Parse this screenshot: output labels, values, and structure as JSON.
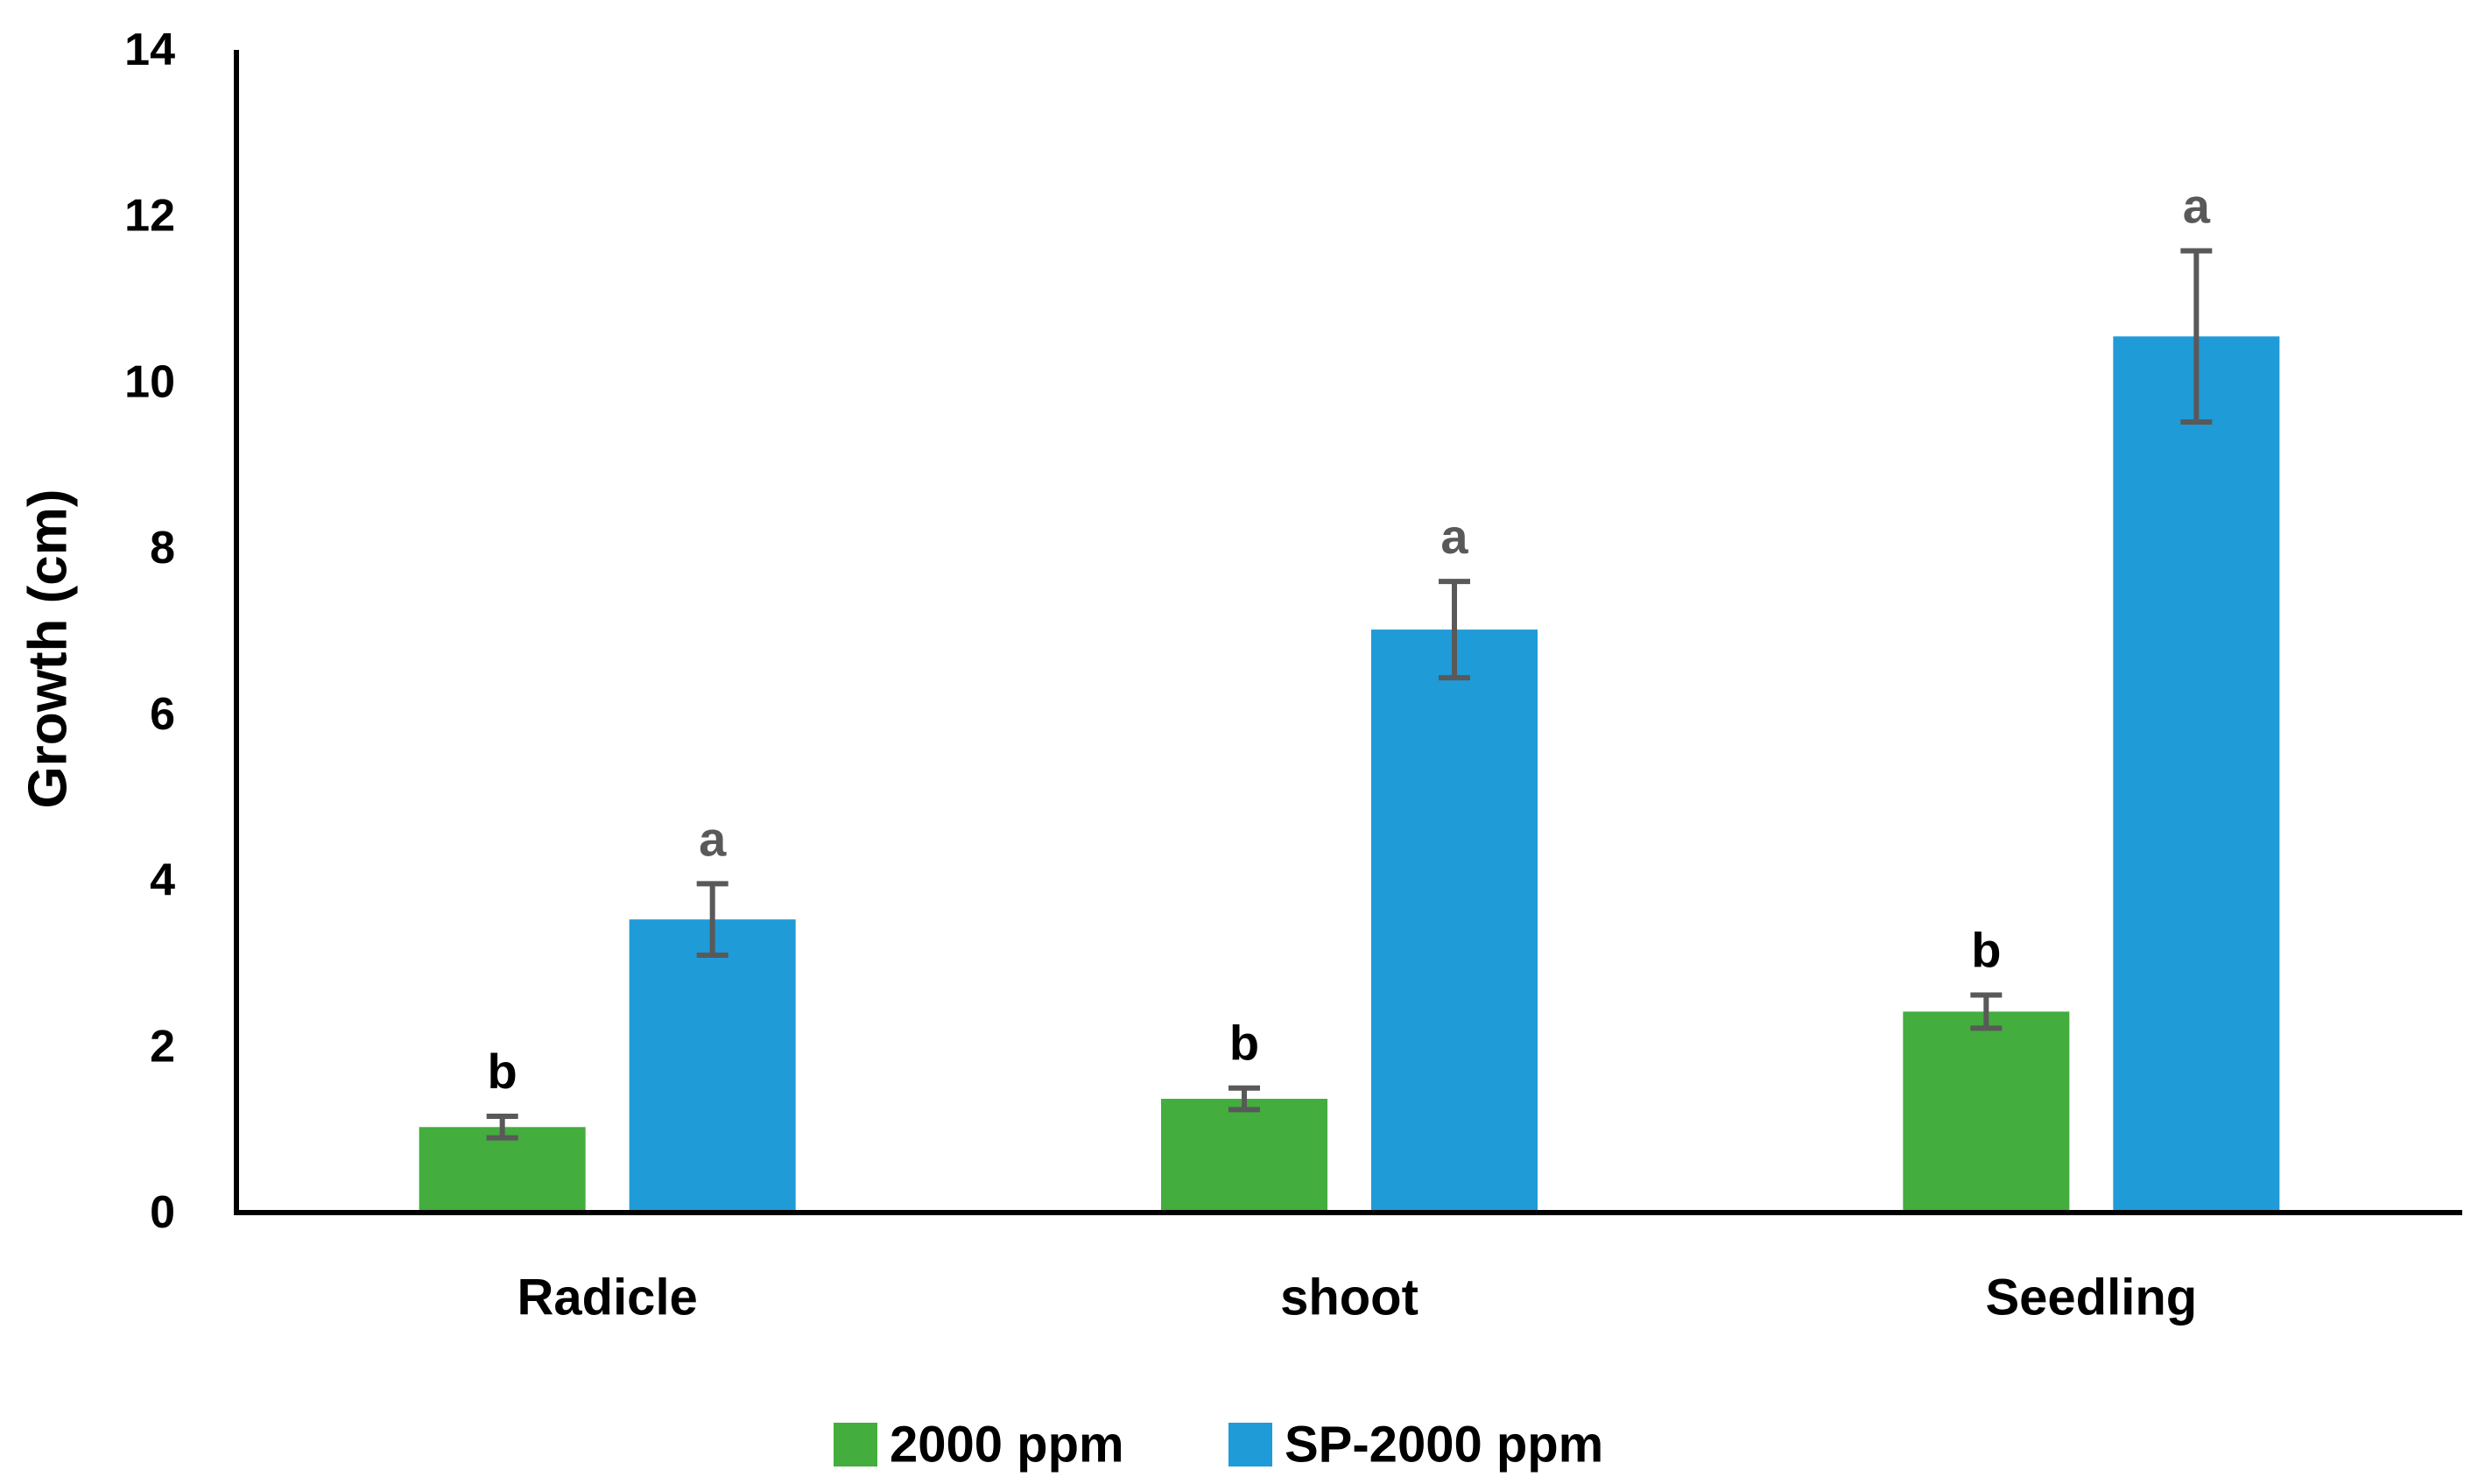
{
  "chart_data": {
    "type": "bar",
    "title": "",
    "xlabel": "",
    "ylabel": "Growth (cm)",
    "ylim": [
      0,
      14
    ],
    "yticks": [
      "0",
      "2",
      "4",
      "6",
      "8",
      "10",
      "12",
      "14"
    ],
    "grid": false,
    "legend_position": "bottom",
    "categories": [
      "Radicle",
      "shoot",
      "Seedling"
    ],
    "series": [
      {
        "name": "2000 ppm",
        "color": "#43ad3e",
        "values": [
          1.03,
          1.37,
          2.42
        ],
        "errors": [
          0.13,
          0.13,
          0.2
        ],
        "labels": [
          "b",
          "b",
          "b"
        ],
        "label_color": "#000000"
      },
      {
        "name": "SP-2000 ppm",
        "color": "#1f9bd8",
        "values": [
          3.53,
          7.02,
          10.55
        ],
        "errors": [
          0.43,
          0.58,
          1.03
        ],
        "labels": [
          "a",
          "a",
          "a"
        ],
        "label_color": "#595959"
      }
    ],
    "error_bar_color": "#595959",
    "axis_color": "#000000"
  }
}
